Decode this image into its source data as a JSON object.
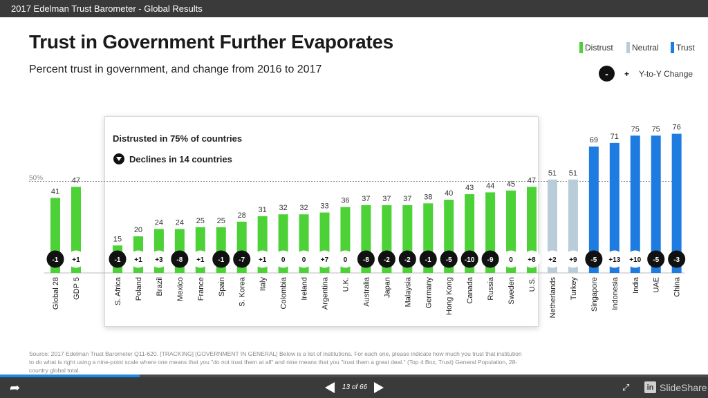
{
  "window": {
    "title": "2017 Edelman Trust Barometer - Global Results"
  },
  "slide": {
    "headline": "Trust in Government Further Evaporates",
    "subtitle": "Percent trust in government, and change from 2016 to 2017",
    "legend": [
      {
        "label": "Distrust",
        "color": "#4cd137"
      },
      {
        "label": "Neutral",
        "color": "#b9ccd9"
      },
      {
        "label": "Trust",
        "color": "#1e7be0"
      }
    ],
    "yoy_legend": {
      "minus": "-",
      "plus": "+",
      "label": "Y-to-Y Change"
    },
    "callout": {
      "line1": "Distrusted in 75% of countries",
      "line2": "Declines in 14 countries"
    },
    "reference_label": "50%",
    "source": "Source: 2017 Edelman Trust Barometer  Q11-620. [TRACKING] [GOVERNMENT IN GENERAL] Below is a list of institutions. For each one, please indicate how much you trust that institution to do what is right using a nine-point scale where one means that you \"do not trust them at all\" and nine means that you \"trust them a great deal.\" (Top 4 Box, Trust) General Population, 28-country global total."
  },
  "chart_data": {
    "type": "bar",
    "categories": [
      "Global 28",
      "GDP 5",
      "S. Africa",
      "Poland",
      "Brazil",
      "Mexico",
      "France",
      "Spain",
      "S. Korea",
      "Italy",
      "Colombia",
      "Ireland",
      "Argentina",
      "U.K.",
      "Australia",
      "Japan",
      "Malaysia",
      "Germany",
      "Hong Kong",
      "Canada",
      "Russia",
      "Sweden",
      "U.S.",
      "Netherlands",
      "Turkey",
      "Singapore",
      "Indonesia",
      "India",
      "UAE",
      "China"
    ],
    "values": [
      41,
      47,
      15,
      20,
      24,
      24,
      25,
      25,
      28,
      31,
      32,
      32,
      33,
      36,
      37,
      37,
      37,
      38,
      40,
      43,
      44,
      45,
      47,
      51,
      51,
      69,
      71,
      75,
      75,
      76
    ],
    "changes": [
      "-1",
      "+1",
      "-1",
      "+1",
      "+3",
      "-8",
      "+1",
      "-1",
      "-7",
      "+1",
      "0",
      "0",
      "+7",
      "0",
      "-8",
      "-2",
      "-2",
      "-1",
      "-5",
      "-10",
      "-9",
      "0",
      "+8",
      "+2",
      "+9",
      "-5",
      "+13",
      "+10",
      "-5",
      "-3"
    ],
    "groups": [
      "Distrust",
      "Distrust",
      "Distrust",
      "Distrust",
      "Distrust",
      "Distrust",
      "Distrust",
      "Distrust",
      "Distrust",
      "Distrust",
      "Distrust",
      "Distrust",
      "Distrust",
      "Distrust",
      "Distrust",
      "Distrust",
      "Distrust",
      "Distrust",
      "Distrust",
      "Distrust",
      "Distrust",
      "Distrust",
      "Distrust",
      "Neutral",
      "Neutral",
      "Trust",
      "Trust",
      "Trust",
      "Trust",
      "Trust"
    ],
    "reference_line": 50,
    "title": "",
    "xlabel": "",
    "ylabel": ""
  },
  "player": {
    "page_current": "13",
    "page_total": "66",
    "page_separator": "of",
    "progress_fraction": 0.197,
    "brand": "SlideShare",
    "brand_badge": "in"
  }
}
